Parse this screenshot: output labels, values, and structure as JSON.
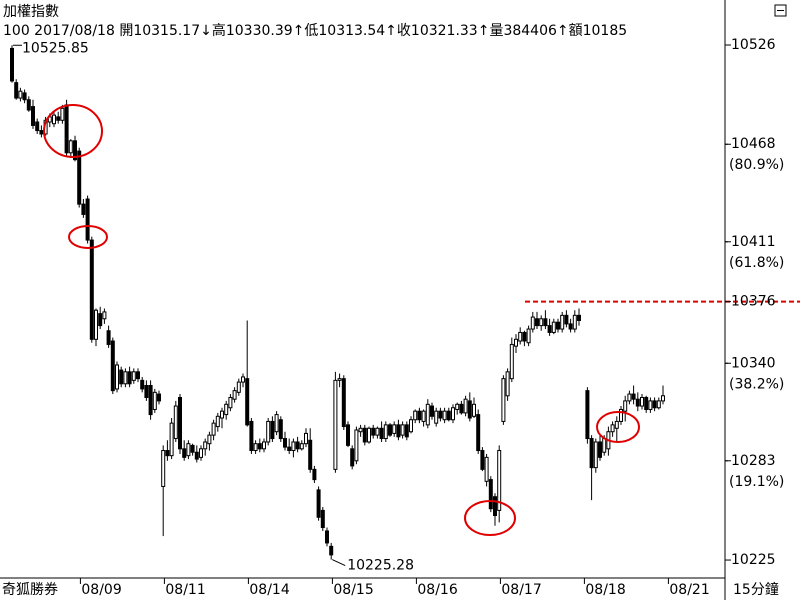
{
  "chart_data": {
    "type": "candlestick",
    "title": "加權指數",
    "info": "100 2017/08/18 開10315.17↓高10330.39↑低10313.54↑收10321.33↑量384406↑額10185",
    "watermark": "奇狐勝券",
    "timeframe": "15分鐘",
    "ylim": [
      10214.5,
      10552.3
    ],
    "yticks": [
      10526,
      10468,
      10411,
      10376,
      10340,
      10283,
      10225
    ],
    "fib_labels": [
      {
        "value": 10468,
        "label": "(80.9%)"
      },
      {
        "value": 10411,
        "label": "(61.8%)"
      },
      {
        "value": 10340,
        "label": "(38.2%)"
      },
      {
        "value": 10283,
        "label": "(19.1%)"
      }
    ],
    "hline": {
      "value": 10376,
      "color": "#e00000"
    },
    "max_label": 10525.85,
    "min_label": 10225.28,
    "up_color": "#ffffff",
    "down_color": "#000000",
    "categories": [
      null,
      null,
      null,
      null,
      null,
      null,
      null,
      null,
      null,
      null,
      null,
      null,
      null,
      null,
      null,
      null,
      null,
      "08/09",
      null,
      null,
      null,
      null,
      null,
      null,
      null,
      null,
      null,
      null,
      null,
      null,
      null,
      null,
      null,
      null,
      null,
      null,
      null,
      "08/11",
      null,
      null,
      null,
      null,
      null,
      null,
      null,
      null,
      null,
      null,
      null,
      null,
      null,
      null,
      null,
      null,
      null,
      null,
      null,
      "08/14",
      null,
      null,
      null,
      null,
      null,
      null,
      null,
      null,
      null,
      null,
      null,
      null,
      null,
      null,
      null,
      null,
      null,
      null,
      null,
      "08/15",
      null,
      null,
      null,
      null,
      null,
      null,
      null,
      null,
      null,
      null,
      null,
      null,
      null,
      null,
      null,
      null,
      null,
      null,
      null,
      "08/16",
      null,
      null,
      null,
      null,
      null,
      null,
      null,
      null,
      null,
      null,
      null,
      null,
      null,
      null,
      null,
      null,
      null,
      null,
      null,
      "08/17",
      null,
      null,
      null,
      null,
      null,
      null,
      null,
      null,
      null,
      null,
      null,
      null,
      null,
      null,
      null,
      null,
      null,
      null,
      null,
      "08/18",
      null,
      null,
      null,
      null,
      null,
      null,
      null,
      null,
      null,
      null,
      null,
      null,
      null,
      null,
      null,
      null,
      null,
      null,
      null,
      "08/21"
    ],
    "open": [
      10524,
      10504,
      10495,
      10498,
      10494,
      10490,
      10481,
      10476,
      10474,
      10481,
      10480,
      10484,
      10482,
      10491,
      10463,
      10470,
      10464,
      10433,
      10436,
      10412,
      10354,
      10369,
      10366,
      10359,
      10353,
      10325,
      10336,
      10328,
      10335,
      10330,
      10335,
      10330,
      10327,
      10327,
      10313,
      10322,
      10268,
      10289,
      10286,
      10296,
      10320,
      10290,
      10286,
      10292,
      10288,
      10285,
      10290,
      10293,
      10298,
      10303,
      10308,
      10310,
      10314,
      10319,
      10323,
      10329,
      10331,
      10306,
      10289,
      10293,
      10290,
      10294,
      10306,
      10300,
      10307,
      10296,
      10291,
      10289,
      10294,
      10290,
      10293,
      10295,
      10278,
      10266,
      10254,
      10242,
      10233,
      10278,
      10330,
      10331,
      10304,
      10290,
      10283,
      10300,
      10302,
      10294,
      10302,
      10298,
      10302,
      10296,
      10304,
      10299,
      10304,
      10298,
      10304,
      10300,
      10307,
      10312,
      10306,
      10304,
      10315,
      10305,
      10312,
      10307,
      10312,
      10307,
      10313,
      10316,
      10311,
      10318,
      10309,
      10310,
      10289,
      10271,
      10272,
      10262,
      10254,
      10306,
      10321,
      10331,
      10350,
      10353,
      10358,
      10352,
      10360,
      10366,
      10362,
      10366,
      10362,
      10358,
      10364,
      10360,
      10368,
      10363,
      10360,
      10368,
      null,
      10324,
      10296,
      10279,
      10294,
      10288,
      10290,
      10300,
      10302,
      10306,
      10312,
      10318,
      10322,
      10319,
      10315,
      10320,
      10313,
      10318,
      10314,
      10318,
      null,
      null
    ],
    "high": [
      10525.85,
      10506,
      10501,
      10500,
      10496,
      10494,
      10483,
      10479,
      10484,
      10486,
      10487,
      10487,
      10491,
      10494,
      10471,
      10473,
      10466,
      10436,
      10438,
      10414,
      10372,
      10373,
      10372,
      10362,
      10355,
      10341,
      10338,
      10337,
      10338,
      10337,
      10337,
      10332,
      10330,
      10330,
      10325,
      10324,
      10292,
      10295,
      10308,
      10318,
      10322,
      10295,
      10295,
      10293,
      10292,
      10292,
      10296,
      10300,
      10307,
      10311,
      10314,
      10318,
      10322,
      10326,
      10331,
      10334,
      10365,
      10308,
      10295,
      10296,
      10296,
      10308,
      10309,
      10312,
      10309,
      10300,
      10296,
      10296,
      10297,
      10295,
      10302,
      10302,
      10280,
      10268,
      10256,
      10244,
      10235,
      10335,
      10334,
      10333,
      10306,
      10292,
      10303,
      10304,
      10304,
      10303,
      10304,
      10303,
      10306,
      10306,
      10305,
      10306,
      10307,
      10306,
      10306,
      10309,
      10313,
      10314,
      10313,
      10319,
      10317,
      10314,
      10314,
      10314,
      10314,
      10316,
      10317,
      10318,
      10321,
      10323,
      10320,
      10313,
      10291,
      10287,
      10274,
      10264,
      10292,
      10333,
      10337,
      10355,
      10357,
      10361,
      10359,
      10362,
      10370,
      10370,
      10368,
      10371,
      10366,
      10366,
      10366,
      10370,
      10371,
      10366,
      10371,
      10372,
      null,
      10326,
      10298,
      10296,
      10298,
      10298,
      10303,
      10306,
      10309,
      10315,
      10321,
      10324,
      10327,
      10323,
      10322,
      10321,
      10320,
      10320,
      10320,
      10327,
      null,
      null
    ],
    "low": [
      10504,
      10494,
      10493,
      10492,
      10487,
      10477,
      10474,
      10472,
      10473,
      10478,
      10478,
      10480,
      10480,
      10461,
      10460,
      10458,
      10431,
      10425,
      10410,
      10352,
      10350,
      10360,
      10363,
      10349,
      10322,
      10323,
      10326,
      10326,
      10326,
      10328,
      10329,
      10323,
      10318,
      10307,
      10311,
      10316,
      10239,
      10283,
      10284,
      10294,
      10287,
      10283,
      10284,
      10286,
      10282,
      10283,
      10286,
      10289,
      10295,
      10300,
      10302,
      10307,
      10312,
      10317,
      10321,
      10326,
      10303,
      10287,
      10287,
      10288,
      10288,
      10292,
      10294,
      10298,
      10294,
      10289,
      10287,
      10285,
      10288,
      10289,
      10291,
      10276,
      10270,
      10248,
      10242,
      10233,
      10225.28,
      10276,
      10326,
      10301,
      10291,
      10278,
      10281,
      10297,
      10292,
      10293,
      10296,
      10296,
      10294,
      10294,
      10297,
      10297,
      10295,
      10296,
      10295,
      10299,
      10305,
      10305,
      10303,
      10302,
      10307,
      10303,
      10306,
      10305,
      10306,
      10305,
      10310,
      10310,
      10309,
      10306,
      10308,
      10287,
      10277,
      10268,
      10253,
      10245,
      10247,
      10304,
      10318,
      10329,
      10346,
      10351,
      10350,
      10350,
      10358,
      10360,
      10359,
      10360,
      10356,
      10357,
      10358,
      10358,
      10361,
      10358,
      10358,
      10362,
      null,
      10293,
      10260,
      10276,
      10283,
      10286,
      10286,
      10297,
      10294,
      10304,
      10306,
      10316,
      10316,
      10312,
      10313,
      10311,
      10311,
      10312,
      10313,
      10316,
      null,
      null
    ],
    "close": [
      10505,
      10495,
      10499,
      10494,
      10488,
      10479,
      10476,
      10474,
      10482,
      10484,
      10485,
      10482,
      10489,
      10463,
      10470,
      10459,
      10433,
      10427,
      10412,
      10354,
      10371,
      10362,
      10370,
      10351,
      10324,
      10339,
      10328,
      10335,
      10328,
      10335,
      10331,
      10325,
      10320,
      10310,
      10323,
      10318,
      10289,
      10286,
      10305,
      10315,
      10290,
      10285,
      10293,
      10288,
      10284,
      10290,
      10294,
      10298,
      10305,
      10309,
      10312,
      10316,
      10320,
      10324,
      10329,
      10332,
      10304,
      10289,
      10293,
      10290,
      10294,
      10306,
      10296,
      10310,
      10296,
      10291,
      10289,
      10294,
      10290,
      10293,
      10299,
      10278,
      10272,
      10250,
      10244,
      10235,
      10228,
      10330,
      10331,
      10303,
      10292,
      10280,
      10301,
      10302,
      10294,
      10302,
      10298,
      10302,
      10296,
      10304,
      10298,
      10304,
      10297,
      10304,
      10297,
      10307,
      10312,
      10307,
      10312,
      10316,
      10309,
      10312,
      10308,
      10312,
      10307,
      10314,
      10316,
      10311,
      10319,
      10308,
      10316,
      10289,
      10278,
      10285,
      10255,
      10251,
      10289,
      10331,
      10335,
      10351,
      10354,
      10358,
      10353,
      10360,
      10367,
      10362,
      10366,
      10362,
      10358,
      10364,
      10360,
      10368,
      10363,
      10360,
      10368,
      10365,
      null,
      10296,
      10279,
      10294,
      10285,
      10296,
      10300,
      10304,
      10306,
      10313,
      10318,
      10322,
      10319,
      10315,
      10320,
      10313,
      10318,
      10314,
      10318,
      10321,
      null,
      null
    ]
  }
}
